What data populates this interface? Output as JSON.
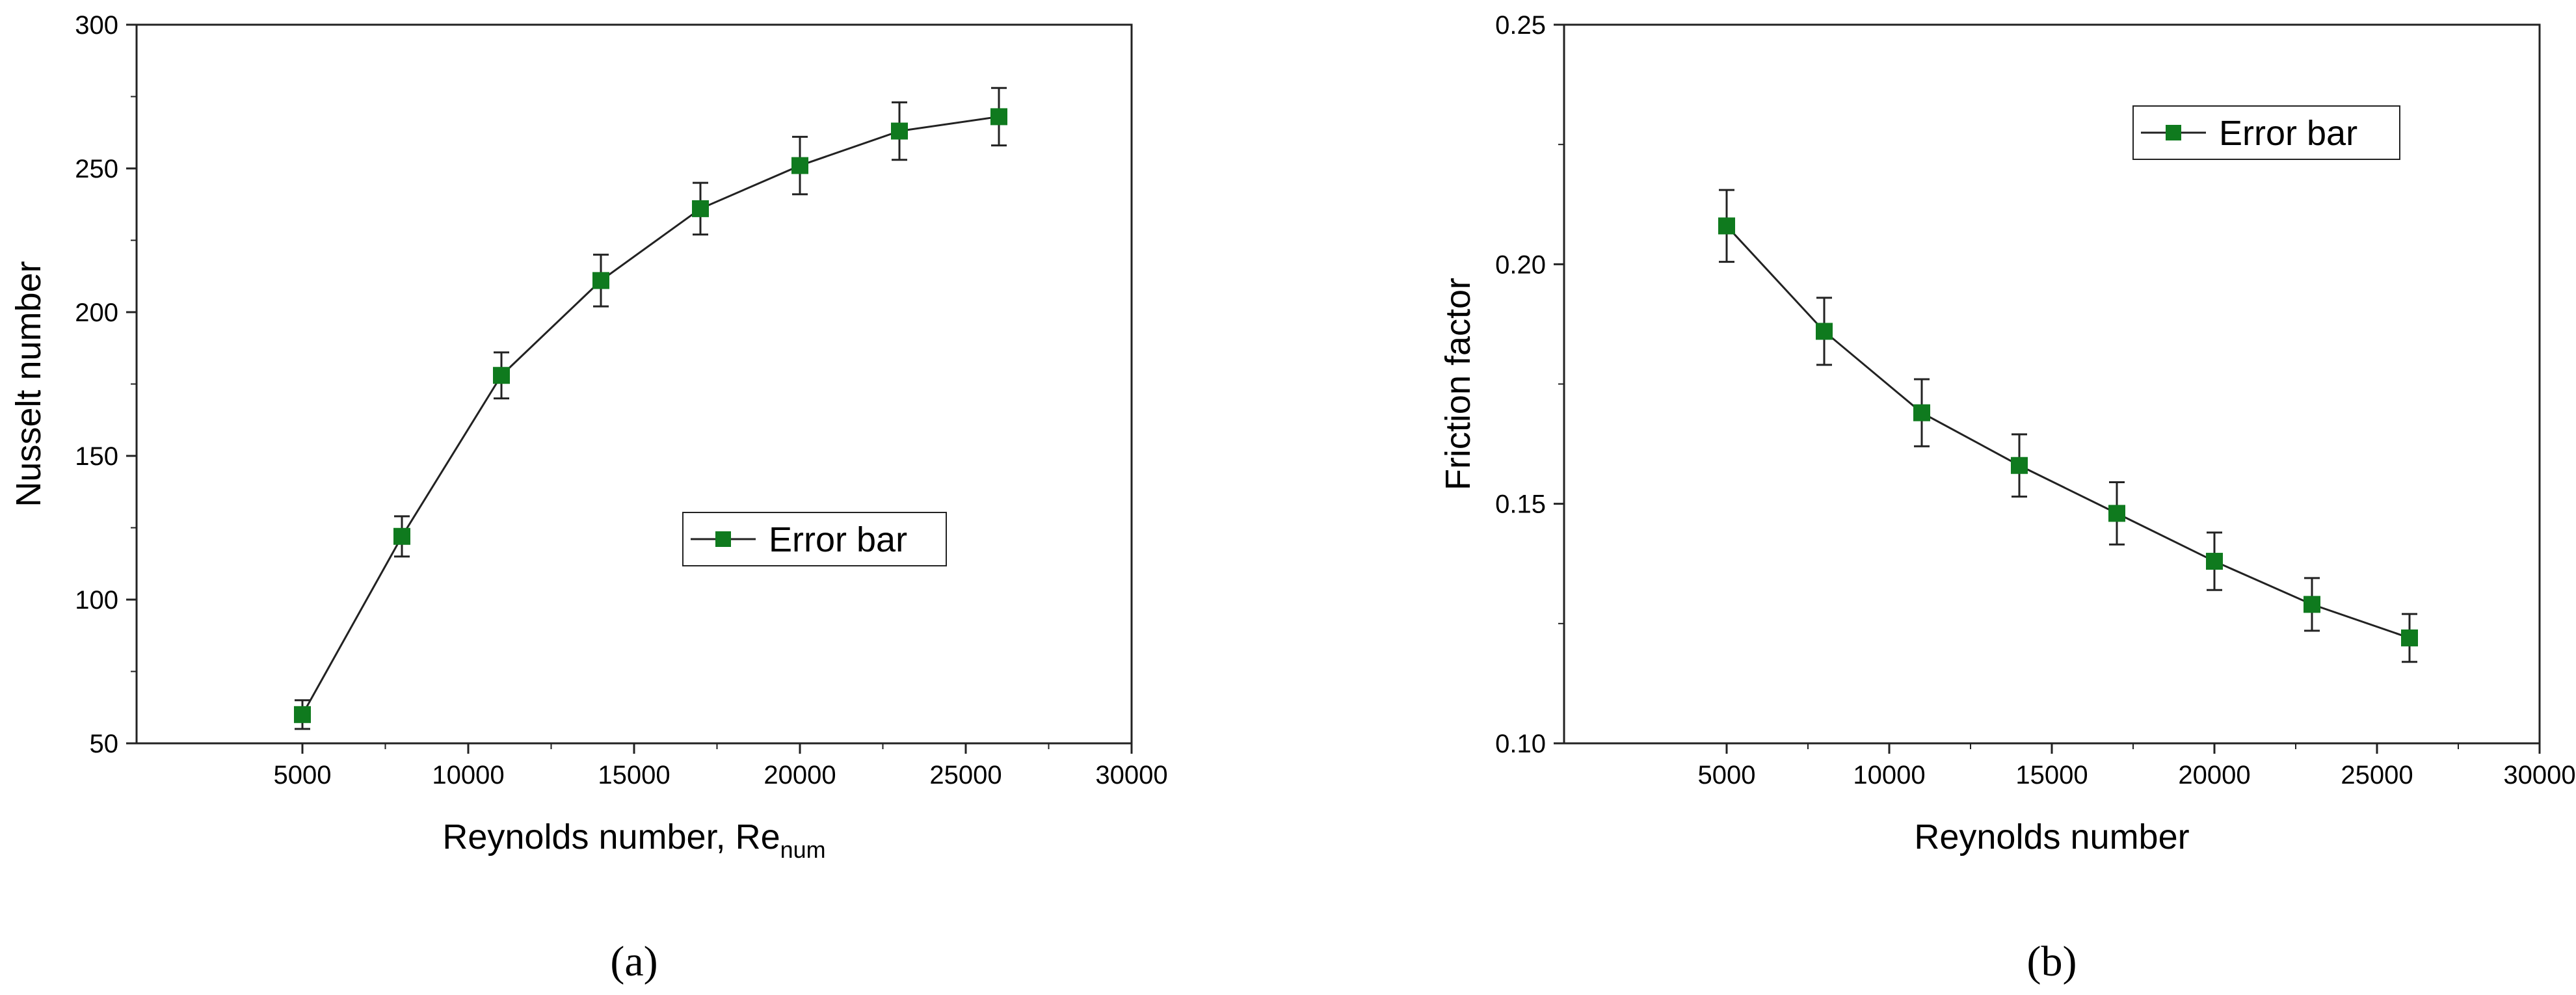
{
  "marker_color": "#0f7a1e",
  "line_color": "#222222",
  "chart_data": [
    {
      "type": "line",
      "panel": "a",
      "panel_label": "(a)",
      "xlabel": "Reynolds number, Re",
      "xlabel_sub": "num",
      "ylabel": "Nusselt number",
      "xlim": [
        0,
        30000
      ],
      "ylim": [
        50,
        300
      ],
      "xticks": [
        5000,
        10000,
        15000,
        20000,
        25000,
        30000
      ],
      "yticks": [
        50,
        100,
        150,
        200,
        250,
        300
      ],
      "grid": false,
      "legend_position": "center-right",
      "series": [
        {
          "name": "Error bar",
          "x": [
            5000,
            8000,
            11000,
            14000,
            17000,
            20000,
            23000,
            26000
          ],
          "y": [
            60,
            122,
            178,
            211,
            236,
            251,
            263,
            268
          ],
          "err": [
            5,
            7,
            8,
            9,
            9,
            10,
            10,
            10
          ]
        }
      ]
    },
    {
      "type": "line",
      "panel": "b",
      "panel_label": "(b)",
      "xlabel": "Reynolds number",
      "xlabel_sub": "",
      "ylabel": "Friction factor",
      "xlim": [
        0,
        30000
      ],
      "ylim": [
        0.1,
        0.25
      ],
      "xticks": [
        5000,
        10000,
        15000,
        20000,
        25000,
        30000
      ],
      "yticks": [
        0.1,
        0.15,
        0.2,
        0.25
      ],
      "ytick_labels": [
        "0.10",
        "0.15",
        "0.20",
        "0.25"
      ],
      "grid": false,
      "legend_position": "top-right",
      "series": [
        {
          "name": "Error bar",
          "x": [
            5000,
            8000,
            11000,
            14000,
            17000,
            20000,
            23000,
            26000
          ],
          "y": [
            0.208,
            0.186,
            0.169,
            0.158,
            0.148,
            0.138,
            0.129,
            0.122
          ],
          "err": [
            0.0075,
            0.007,
            0.007,
            0.0065,
            0.0065,
            0.006,
            0.0055,
            0.005
          ]
        }
      ]
    }
  ]
}
